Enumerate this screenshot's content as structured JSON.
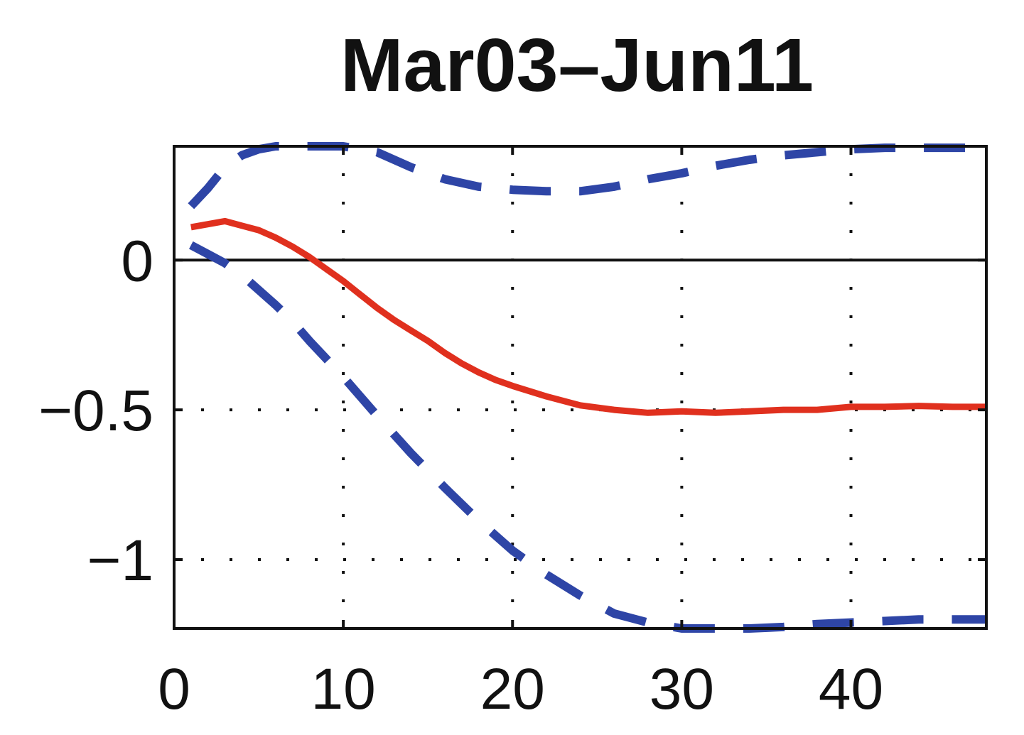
{
  "chart_data": {
    "type": "line",
    "title": "Mar03–Jun11",
    "xlabel": "",
    "ylabel": "",
    "xlim": [
      0,
      48
    ],
    "ylim": [
      -1.23,
      0.38
    ],
    "grid": true,
    "zero_line": true,
    "xticks": [
      0,
      10,
      20,
      30,
      40
    ],
    "xtick_labels": [
      "0",
      "10",
      "20",
      "30",
      "40"
    ],
    "yticks": [
      0,
      -0.5,
      -1
    ],
    "ytick_labels": [
      "0",
      "−0.5",
      "−1"
    ],
    "colors": {
      "estimate": "#e0301e",
      "band": "#2e45a6"
    },
    "series": [
      {
        "role": "estimate",
        "style": "solid",
        "x": [
          1,
          2,
          3,
          4,
          5,
          6,
          7,
          8,
          9,
          10,
          11,
          12,
          13,
          14,
          15,
          16,
          17,
          18,
          19,
          20,
          22,
          24,
          26,
          28,
          30,
          32,
          34,
          36,
          38,
          40,
          42,
          44,
          46,
          48
        ],
        "values": [
          0.11,
          0.12,
          0.13,
          0.115,
          0.1,
          0.075,
          0.045,
          0.01,
          -0.03,
          -0.07,
          -0.115,
          -0.16,
          -0.2,
          -0.235,
          -0.27,
          -0.31,
          -0.345,
          -0.375,
          -0.4,
          -0.42,
          -0.455,
          -0.485,
          -0.5,
          -0.51,
          -0.505,
          -0.51,
          -0.505,
          -0.5,
          -0.5,
          -0.49,
          -0.49,
          -0.487,
          -0.49,
          -0.49
        ]
      },
      {
        "role": "upper-band",
        "style": "dashed",
        "x": [
          1,
          2,
          3,
          4,
          5,
          6,
          7,
          8,
          9,
          10,
          12,
          14,
          16,
          18,
          20,
          22,
          24,
          26,
          28,
          30,
          32,
          34,
          36,
          38,
          40,
          42,
          44,
          46,
          48
        ],
        "values": [
          0.18,
          0.24,
          0.31,
          0.35,
          0.37,
          0.38,
          0.38,
          0.38,
          0.38,
          0.38,
          0.36,
          0.31,
          0.27,
          0.245,
          0.235,
          0.23,
          0.23,
          0.245,
          0.27,
          0.29,
          0.315,
          0.335,
          0.35,
          0.36,
          0.37,
          0.375,
          0.375,
          0.375,
          0.375
        ]
      },
      {
        "role": "lower-band",
        "style": "dashed",
        "x": [
          1,
          2,
          3,
          4,
          5,
          6,
          7,
          8,
          9,
          10,
          12,
          14,
          16,
          18,
          20,
          22,
          24,
          26,
          28,
          30,
          32,
          34,
          36,
          38,
          40,
          42,
          44,
          46,
          48
        ],
        "values": [
          0.05,
          0.02,
          -0.01,
          -0.05,
          -0.1,
          -0.15,
          -0.205,
          -0.27,
          -0.33,
          -0.39,
          -0.52,
          -0.645,
          -0.76,
          -0.87,
          -0.97,
          -1.05,
          -1.12,
          -1.18,
          -1.21,
          -1.23,
          -1.23,
          -1.23,
          -1.225,
          -1.215,
          -1.21,
          -1.205,
          -1.2,
          -1.2,
          -1.2
        ]
      }
    ]
  }
}
